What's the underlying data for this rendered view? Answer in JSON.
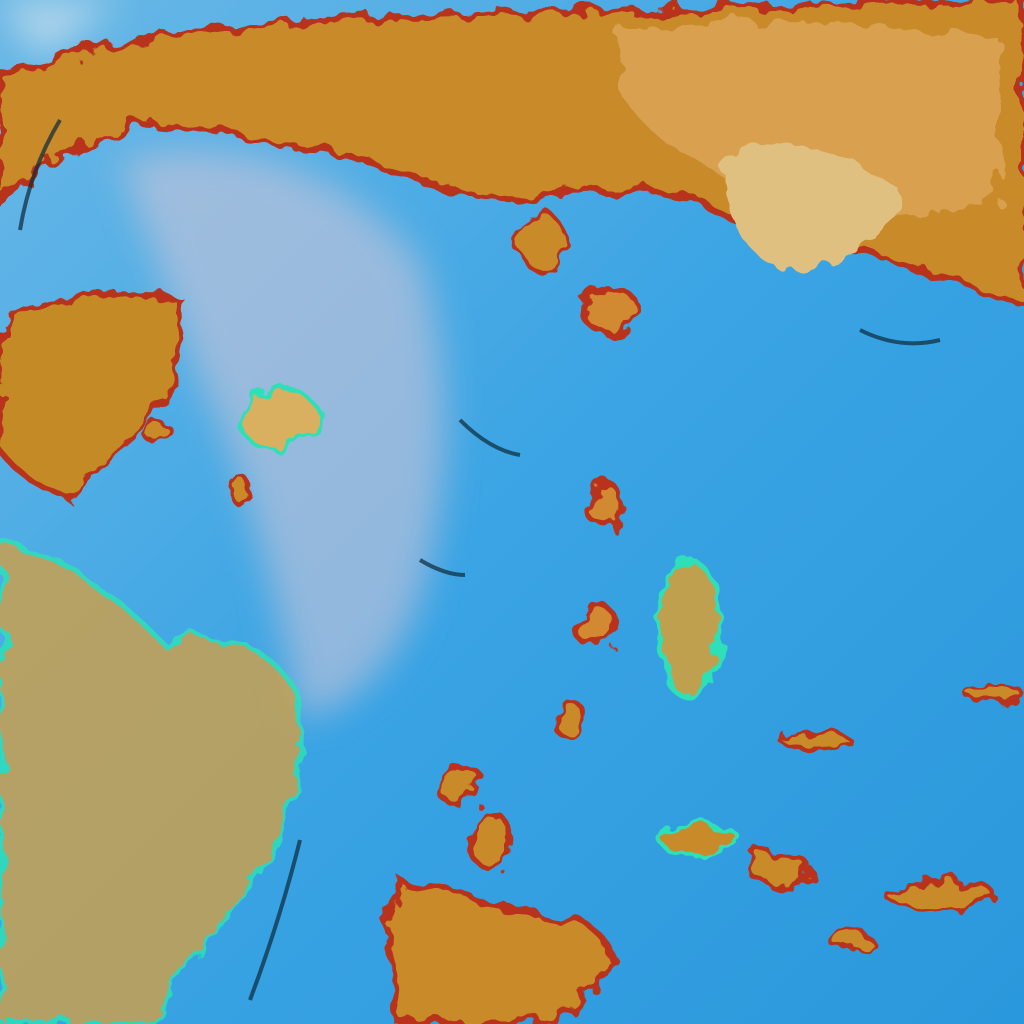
{
  "image": {
    "kind": "false-color satellite imagery",
    "colors": {
      "ocean": "#2f9fe0",
      "ocean_light": "#7cc6ee",
      "haze": "#c9c9d8",
      "land": "#c98a2a",
      "land_light": "#d9b56a",
      "edge_red": "#b8321e",
      "edge_cyan": "#2fe0b8",
      "shadow": "#0c2a3a"
    }
  }
}
